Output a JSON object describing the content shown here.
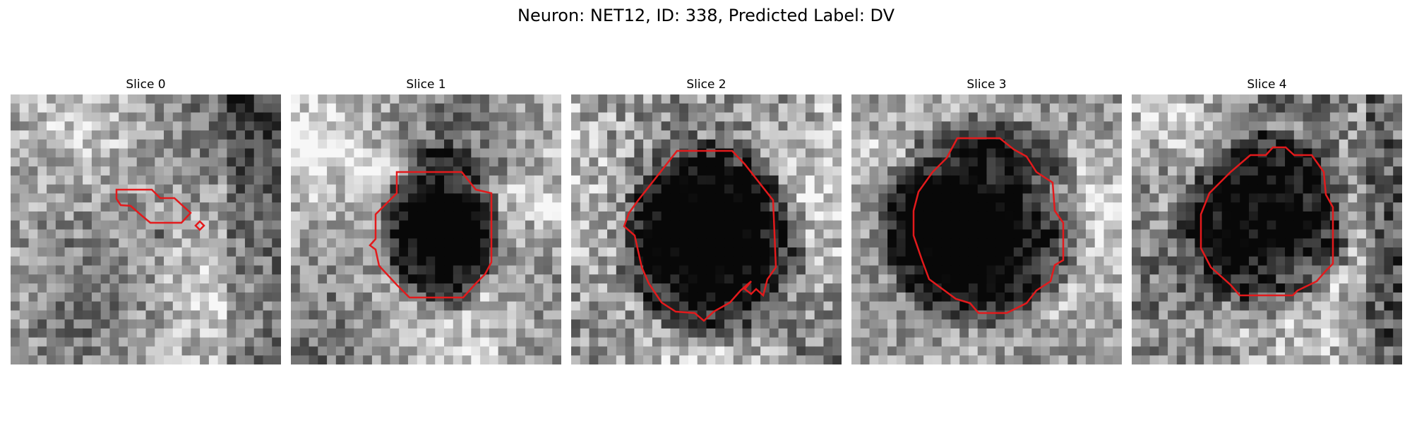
{
  "figure": {
    "suptitle": "Neuron: NET12, ID: 338, Predicted Label: DV"
  },
  "panels": [
    {
      "title": "Slice 0",
      "contour_color": "#e31a1c",
      "soma": [
        0.55,
        0.52,
        0.05,
        0.03
      ],
      "texture": "mixed-bright"
    },
    {
      "title": "Slice 1",
      "contour_color": "#e31a1c",
      "soma": [
        0.56,
        0.5,
        0.18,
        0.26
      ],
      "texture": "dark-blob"
    },
    {
      "title": "Slice 2",
      "contour_color": "#e31a1c",
      "soma": [
        0.52,
        0.55,
        0.28,
        0.3
      ],
      "texture": "dark-noisy"
    },
    {
      "title": "Slice 3",
      "contour_color": "#e31a1c",
      "soma": [
        0.49,
        0.47,
        0.32,
        0.32
      ],
      "texture": "dark-blob"
    },
    {
      "title": "Slice 4",
      "contour_color": "#e31a1c",
      "soma": [
        0.5,
        0.47,
        0.26,
        0.28
      ],
      "texture": "dark-noisy"
    }
  ]
}
